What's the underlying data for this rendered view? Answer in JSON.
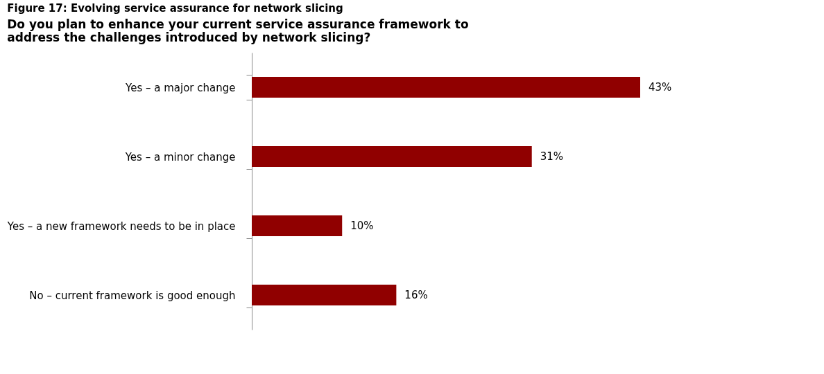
{
  "chart_data": {
    "type": "bar",
    "orientation": "horizontal",
    "title": "Figure 17: Evolving service assurance for network slicing",
    "subtitle": "Do you plan to enhance your current service assurance framework to address the challenges introduced by network slicing?",
    "categories": [
      "Yes – a major change",
      "Yes – a minor change",
      "Yes – a new framework needs to be in place",
      "No – current framework is good enough"
    ],
    "values": [
      43,
      31,
      10,
      16
    ],
    "value_labels": [
      "43%",
      "31%",
      "10%",
      "16%"
    ],
    "color": "#900000"
  }
}
